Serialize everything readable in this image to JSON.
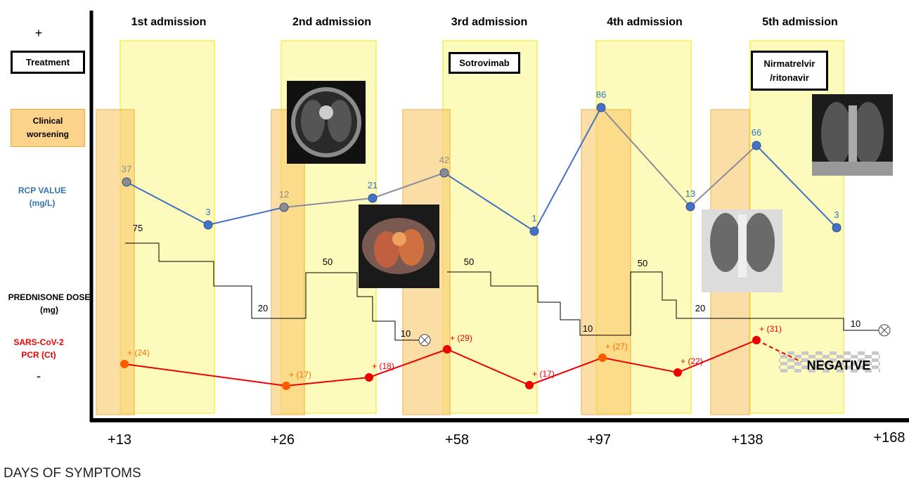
{
  "axis": {
    "top": "+",
    "bottom": "-",
    "x_title": "DAYS OF SYMPTOMS",
    "x_labels": [
      "+13",
      "+26",
      "+58",
      "+97",
      "+138",
      "+168"
    ]
  },
  "admissions": [
    "1st admission",
    "2nd admission",
    "3rd admission",
    "4th admission",
    "5th admission"
  ],
  "legend": {
    "treatment": "Treatment",
    "clinical_worsening": "Clinical worsening",
    "rcp": "RCP VALUE (mg/L)",
    "prednisone": "PREDNISONE DOSE (mg)",
    "pcr": "SARS-CoV-2  PCR (Ct)"
  },
  "treatments": [
    "Sotrovimab",
    "Nirmatrelvir /ritonavir"
  ],
  "rcp_values": [
    37,
    3,
    12,
    21,
    42,
    1,
    86,
    13,
    66,
    3
  ],
  "prednisone_doses": [
    75,
    20,
    50,
    10,
    50,
    10,
    50,
    20,
    10
  ],
  "pcr_values": [
    "+ (24)",
    "+ (17)",
    "+ (18)",
    "+ (29)",
    "+ (17)",
    "+ (27)",
    "+ (22)",
    "+ (31)"
  ],
  "negative": "NEGATIVE"
}
